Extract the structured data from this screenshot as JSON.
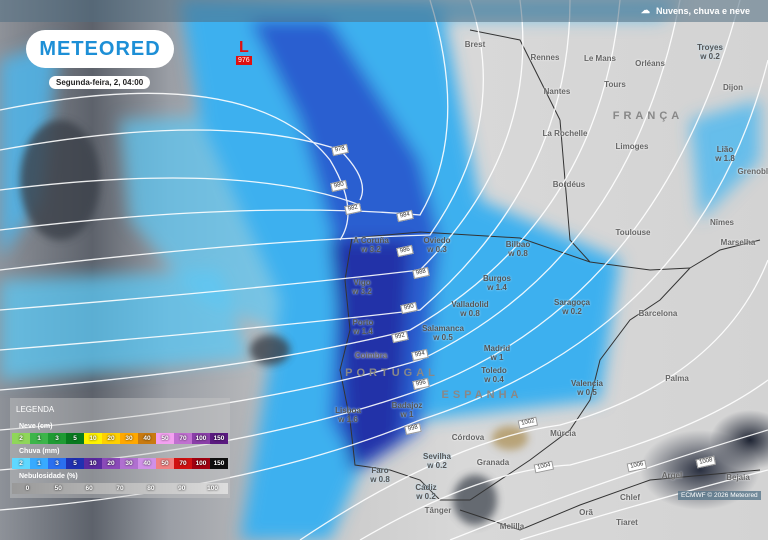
{
  "header": {
    "title": "Nuvens, chuva e neve",
    "icon": "cloud-rain-snow-icon"
  },
  "logo": "METEORED",
  "date": "Segunda-feira, 2, 04:00",
  "low_pressure": {
    "symbol": "L",
    "value": "976"
  },
  "isobars": [
    "978",
    "980",
    "982",
    "984",
    "986",
    "988",
    "990",
    "992",
    "994",
    "996",
    "998",
    "1002",
    "1004",
    "1006",
    "1008"
  ],
  "countries": [
    "FRANÇA",
    "PORTUGAL",
    "ESPANHA"
  ],
  "cities": [
    {
      "name": "Brest"
    },
    {
      "name": "Rennes"
    },
    {
      "name": "Le Mans"
    },
    {
      "name": "Orléans"
    },
    {
      "name": "Tours"
    },
    {
      "name": "Nantes"
    },
    {
      "name": "La Rochelle"
    },
    {
      "name": "Limoges"
    },
    {
      "name": "Bordéus"
    },
    {
      "name": "Toulouse"
    },
    {
      "name": "Troyes",
      "value": "w 0.2"
    },
    {
      "name": "Dijon"
    },
    {
      "name": "Lião",
      "value": "w 1.8"
    },
    {
      "name": "Grenoble"
    },
    {
      "name": "Nîmes"
    },
    {
      "name": "Marselha"
    },
    {
      "name": "A Coruña",
      "value": "w 3.2"
    },
    {
      "name": "Oviedo",
      "value": "w 0.3"
    },
    {
      "name": "Bilbao",
      "value": "w 0.8"
    },
    {
      "name": "Vigo",
      "value": "w 3.2"
    },
    {
      "name": "Burgos",
      "value": "w 1.4"
    },
    {
      "name": "Valladolid",
      "value": "w 0.8"
    },
    {
      "name": "Saragoça",
      "value": "w 0.2"
    },
    {
      "name": "Porto",
      "value": "w 1.4"
    },
    {
      "name": "Salamanca",
      "value": "w 0.5"
    },
    {
      "name": "Madrid",
      "value": "w 1"
    },
    {
      "name": "Toledo",
      "value": "w 0.4"
    },
    {
      "name": "Coimbra"
    },
    {
      "name": "Lisboa",
      "value": "w 1.6"
    },
    {
      "name": "Badajoz",
      "value": "w 1"
    },
    {
      "name": "Valencia",
      "value": "w 0.5"
    },
    {
      "name": "Córdova"
    },
    {
      "name": "Múrcia"
    },
    {
      "name": "Sevilha",
      "value": "w 0.2"
    },
    {
      "name": "Granada"
    },
    {
      "name": "Faro",
      "value": "w 0.8"
    },
    {
      "name": "Cádiz",
      "value": "w 0.2"
    },
    {
      "name": "Tânger"
    },
    {
      "name": "Melilla"
    },
    {
      "name": "Orã"
    },
    {
      "name": "Chlef"
    },
    {
      "name": "Tiaret"
    },
    {
      "name": "Argel"
    },
    {
      "name": "Bejaia"
    },
    {
      "name": "Barcelona"
    },
    {
      "name": "Palma"
    }
  ],
  "legend": {
    "title": "LEGENDA",
    "snow": {
      "label": "Neve (cm)",
      "steps": [
        "2",
        "1",
        "3",
        "5",
        "10",
        "20",
        "30",
        "40",
        "50",
        "70",
        "100",
        "150"
      ],
      "colors": [
        "#8fd65a",
        "#3cb54a",
        "#1e9b33",
        "#087a1e",
        "#fff200",
        "#ffd000",
        "#ffa800",
        "#c87a10",
        "#f3a0f0",
        "#c070d0",
        "#8a3ea8",
        "#5a1a80"
      ]
    },
    "rain": {
      "label": "Chuva (mm)",
      "steps": [
        "2",
        "1",
        "3",
        "5",
        "10",
        "20",
        "30",
        "40",
        "50",
        "70",
        "100",
        "150"
      ],
      "colors": [
        "#5fd8ff",
        "#38aaff",
        "#2a70f0",
        "#2030b0",
        "#5a2aa0",
        "#8a4ab8",
        "#b070d0",
        "#d090e8",
        "#f08080",
        "#d01010",
        "#a00010",
        "#101010"
      ]
    },
    "clouds": {
      "label": "Nebulosidade (%)",
      "steps": [
        "0",
        "50",
        "60",
        "70",
        "80",
        "90",
        "100"
      ]
    }
  },
  "credit": "ECMWF © 2026 Meteored"
}
